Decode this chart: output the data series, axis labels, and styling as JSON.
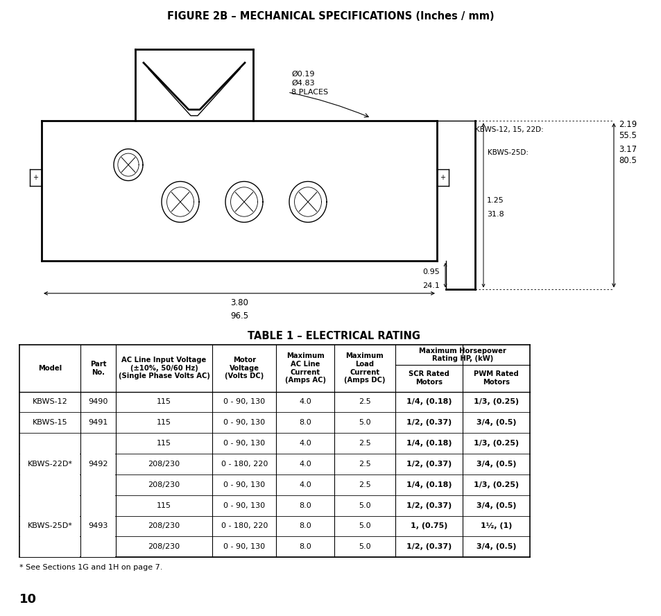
{
  "fig_title": "FIGURE 2B – MECHANICAL SPECIFICATIONS (Inches / mm)",
  "table_title": "TABLE 1 – ELECTRICAL RATING",
  "page_number": "10",
  "footnote": "* See Sections 1G and 1H on page 7.",
  "background_color": "#ffffff",
  "table_data": [
    [
      "KBWS-12",
      "9490",
      "115",
      "0 - 90, 130",
      "4.0",
      "2.5",
      "1/4, (0.18)",
      "1/3, (0.25)"
    ],
    [
      "KBWS-15",
      "9491",
      "115",
      "0 - 90, 130",
      "8.0",
      "5.0",
      "1/2, (0.37)",
      "3/4, (0.5)"
    ],
    [
      "KBWS-22D*",
      "9492",
      "115",
      "0 - 90, 130",
      "4.0",
      "2.5",
      "1/4, (0.18)",
      "1/3, (0.25)"
    ],
    [
      "",
      "",
      "208/230",
      "0 - 180, 220",
      "4.0",
      "2.5",
      "1/2, (0.37)",
      "3/4, (0.5)"
    ],
    [
      "",
      "",
      "208/230",
      "0 - 90, 130",
      "4.0",
      "2.5",
      "1/4, (0.18)",
      "1/3, (0.25)"
    ],
    [
      "KBWS-25D*",
      "9493",
      "115",
      "0 - 90, 130",
      "8.0",
      "5.0",
      "1/2, (0.37)",
      "3/4, (0.5)"
    ],
    [
      "",
      "",
      "208/230",
      "0 - 180, 220",
      "8.0",
      "5.0",
      "1, (0.75)",
      "1½, (1)"
    ],
    [
      "",
      "",
      "208/230",
      "0 - 90, 130",
      "8.0",
      "5.0",
      "1/2, (0.37)",
      "3/4, (0.5)"
    ]
  ],
  "hole_label": "Ø0.19\nØ4.83\n8 PLACES",
  "kbws_12_15_22d_label": "KBWS-12, 15, 22D:",
  "kbws_12_15_22d_val": "2.19\n55.5",
  "kbws_25d_label": "KBWS-25D:",
  "kbws_25d_val": "3.17\n80.5",
  "dim_095": "0.95",
  "dim_095b": "24.1",
  "dim_125": "1.25",
  "dim_125b": "31.8",
  "dim_380": "3.80",
  "dim_380b": "96.5"
}
